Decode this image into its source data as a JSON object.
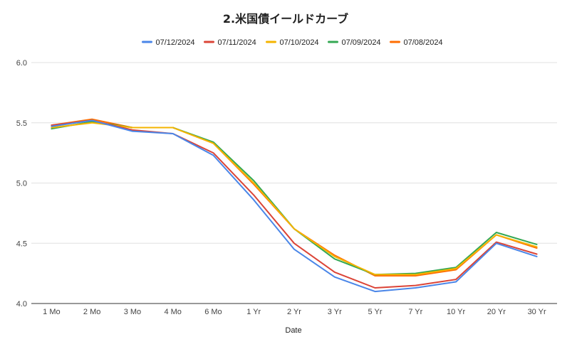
{
  "chart_data": {
    "type": "line",
    "title": "2.米国債イールドカーブ",
    "xlabel": "Date",
    "ylabel": "",
    "categories": [
      "1 Mo",
      "2 Mo",
      "3 Mo",
      "4 Mo",
      "6 Mo",
      "1 Yr",
      "2 Yr",
      "3 Yr",
      "5 Yr",
      "7 Yr",
      "10 Yr",
      "20 Yr",
      "30 Yr"
    ],
    "ylim": [
      4.0,
      6.0
    ],
    "yticks": [
      "4.0",
      "4.5",
      "5.0",
      "5.5",
      "6.0"
    ],
    "grid": true,
    "legend_position": "top",
    "series": [
      {
        "name": "07/12/2024",
        "color": "#4a86e8",
        "values": [
          5.47,
          5.52,
          5.43,
          5.41,
          5.23,
          4.86,
          4.45,
          4.22,
          4.1,
          4.13,
          4.18,
          4.5,
          4.39
        ]
      },
      {
        "name": "07/11/2024",
        "color": "#db4437",
        "values": [
          5.48,
          5.52,
          5.44,
          5.41,
          5.25,
          4.9,
          4.5,
          4.26,
          4.13,
          4.15,
          4.2,
          4.51,
          4.41
        ]
      },
      {
        "name": "07/10/2024",
        "color": "#f4b400",
        "values": [
          5.46,
          5.5,
          5.46,
          5.46,
          5.33,
          5.0,
          4.62,
          4.39,
          4.24,
          4.24,
          4.29,
          4.57,
          4.47
        ]
      },
      {
        "name": "07/09/2024",
        "color": "#34a853",
        "values": [
          5.45,
          5.51,
          5.46,
          5.46,
          5.34,
          5.02,
          4.62,
          4.37,
          4.24,
          4.25,
          4.3,
          4.59,
          4.49
        ]
      },
      {
        "name": "07/08/2024",
        "color": "#ff6d01",
        "values": [
          5.48,
          5.53,
          5.46,
          5.46,
          5.33,
          4.99,
          4.62,
          4.4,
          4.23,
          4.23,
          4.28,
          4.57,
          4.46
        ]
      }
    ]
  }
}
